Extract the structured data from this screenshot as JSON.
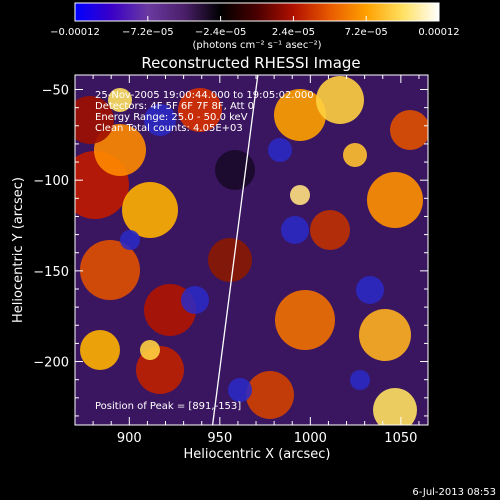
{
  "chart_data": {
    "type": "heatmap",
    "title": "Reconstructed RHESSI Image",
    "xlabel": "Heliocentric X (arcsec)",
    "ylabel": "Heliocentric Y (arcsec)",
    "xlim": [
      870,
      1065
    ],
    "ylim": [
      -235,
      -42
    ],
    "x_ticks": [
      900,
      950,
      1000,
      1050
    ],
    "x_tick_labels": [
      "900",
      "950",
      "1000",
      "1050"
    ],
    "y_ticks": [
      -50,
      -100,
      -150,
      -200
    ],
    "y_tick_labels": [
      "−50",
      "−100",
      "−150",
      "−200"
    ],
    "colorbar": {
      "range": [
        -0.00012,
        0.00012
      ],
      "ticks": [
        -0.00012,
        -7.2e-05,
        -2.4e-05,
        2.4e-05,
        7.2e-05,
        0.00012
      ],
      "tick_labels": [
        "−0.00012",
        "−7.2e−05",
        "−2.4e−05",
        "2.4e−05",
        "7.2e−05",
        "0.00012"
      ],
      "units_label": "(photons cm⁻² s⁻¹ asec⁻²)",
      "colormap": [
        "#0000ff",
        "#3a00c8",
        "#6a3aa0",
        "#4a1f6a",
        "#000000",
        "#4a0000",
        "#b01000",
        "#e85a00",
        "#ffa000",
        "#ffe060",
        "#ffffff"
      ]
    },
    "annotations": [
      "25-Nov-2005 19:00:44.000 to 19:05:02.000",
      "Detectors: 4F 5F 6F 7F 8F, Att 0",
      "Energy Range: 25.0 - 50.0 keV",
      "Clean     Total counts: 4.05E+03"
    ],
    "peak_label": "Position of Peak = [891,-153]",
    "peak": [
      891,
      -153
    ],
    "limb_line": [
      [
        946,
        -235
      ],
      [
        971,
        -42
      ]
    ],
    "grid": false,
    "legend": "none"
  },
  "footer": {
    "timestamp": "6-Jul-2013 08:53"
  }
}
